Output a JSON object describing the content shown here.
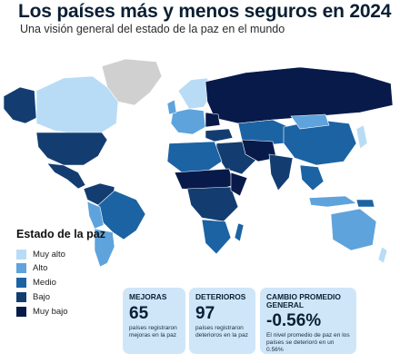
{
  "header": {
    "title": "Los países más y menos seguros en 2024",
    "subtitle": "Una visión general del estado de la paz en el mundo"
  },
  "colors": {
    "muy_alto": "#b8dcf5",
    "alto": "#5fa3dc",
    "medio": "#1c63a4",
    "bajo": "#133d71",
    "muy_bajo": "#081a4a",
    "no_data": "#d0d0d0",
    "card_bg": "#cfe6f9"
  },
  "legend": {
    "title": "Estado de la paz",
    "items": [
      {
        "label": "Muy alto",
        "color": "#b8dcf5"
      },
      {
        "label": "Alto",
        "color": "#5fa3dc"
      },
      {
        "label": "Medio",
        "color": "#1c63a4"
      },
      {
        "label": "Bajo",
        "color": "#133d71"
      },
      {
        "label": "Muy bajo",
        "color": "#081a4a"
      }
    ]
  },
  "stats": [
    {
      "heading": "MEJORAS",
      "value": "65",
      "description": "países registraron mejoras en la paz"
    },
    {
      "heading": "DETERIOROS",
      "value": "97",
      "description": "países registraron deterioros en la paz"
    },
    {
      "heading": "CAMBIO PROMEDIO GENERAL",
      "value": "-0.56%",
      "description": "El nivel promedio de paz en los países se deterioró en un 0.56%"
    }
  ]
}
